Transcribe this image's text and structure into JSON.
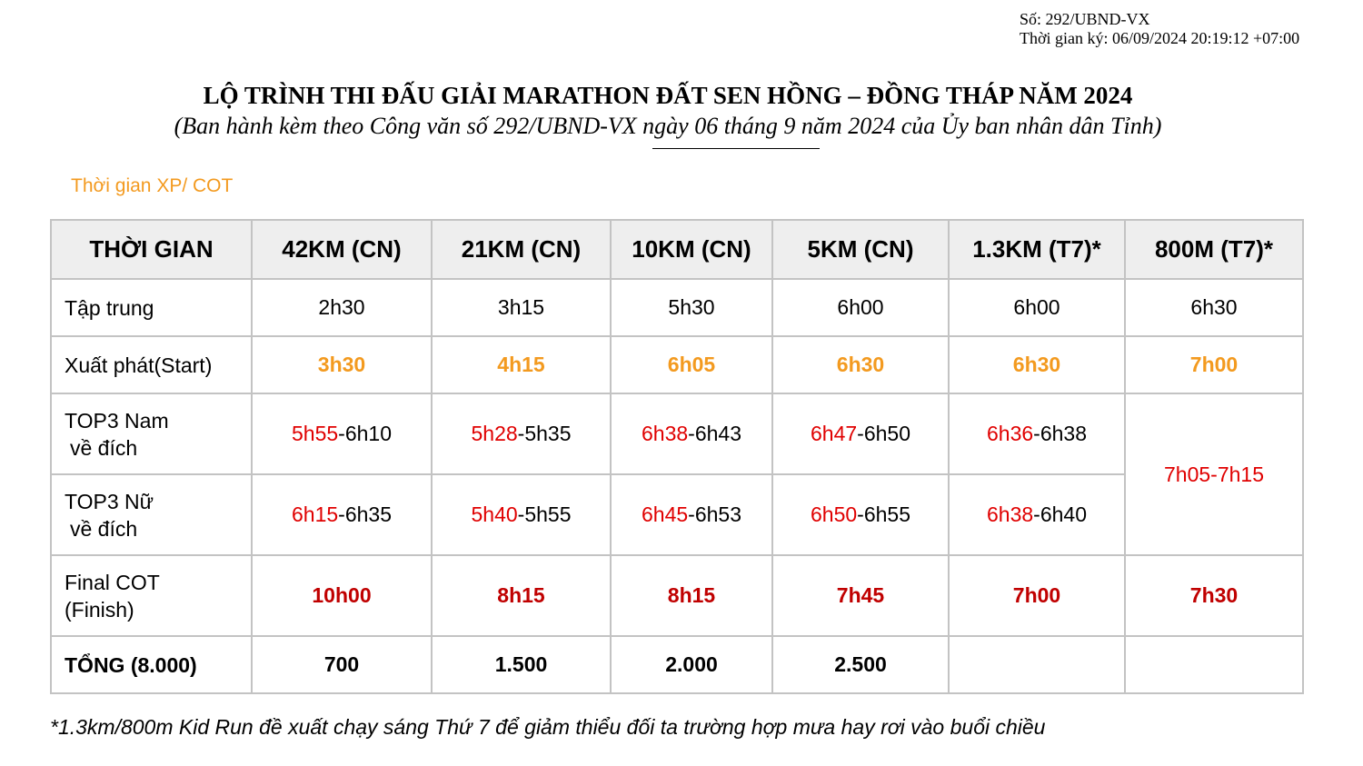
{
  "sign": {
    "number": "Số: 292/UBND-VX",
    "signed_time": "Thời gian ký: 06/09/2024 20:19:12 +07:00"
  },
  "title": "LỘ TRÌNH THI ĐẤU GIẢI MARATHON ĐẤT SEN HỒNG – ĐỒNG THÁP NĂM 2024",
  "subtitle": "(Ban hành kèm theo Công văn số  292/UBND-VX ngày 06 tháng 9 năm 2024 của Ủy ban nhân dân Tỉnh)",
  "section_label": "Thời gian XP/ COT",
  "colors": {
    "orange": "#f39a1f",
    "red": "#e00000",
    "dark_red": "#c00000",
    "header_bg": "#eeeeee",
    "grid": "#c3c3c3"
  },
  "table": {
    "headers": [
      "THỜI GIAN",
      "42KM (CN)",
      "21KM (CN)",
      "10KM (CN)",
      "5KM (CN)",
      "1.3KM (T7)*",
      "800M (T7)*"
    ],
    "tap_trung": {
      "label": "Tập trung",
      "values": [
        "2h30",
        "3h15",
        "5h30",
        "6h00",
        "6h00",
        "6h30"
      ]
    },
    "start": {
      "label": "Xuất phát(Start)",
      "values": [
        "3h30",
        "4h15",
        "6h05",
        "6h30",
        "6h30",
        "7h00"
      ]
    },
    "top3_nam": {
      "label_line1": "TOP3 Nam",
      "label_line2": "về đích",
      "from": [
        "5h55",
        "5h28",
        "6h38",
        "6h47",
        "6h36"
      ],
      "to": [
        "-6h10",
        "-5h35",
        "-6h43",
        "-6h50",
        "-6h38"
      ]
    },
    "top3_nu": {
      "label_line1": "TOP3 Nữ",
      "label_line2": "về đích",
      "from": [
        "6h15",
        "5h40",
        "6h45",
        "6h50",
        "6h38"
      ],
      "to": [
        "-6h35",
        "-5h55",
        "-6h53",
        "-6h55",
        "-6h40"
      ]
    },
    "top3_800m": "7h05-7h15",
    "final_cot": {
      "label_line1": "Final COT",
      "label_line2": "(Finish)",
      "values": [
        "10h00",
        "8h15",
        "8h15",
        "7h45",
        "7h00",
        "7h30"
      ]
    },
    "total": {
      "label": "TỔNG (8.000)",
      "values": [
        "700",
        "1.500",
        "2.000",
        "2.500",
        "",
        ""
      ]
    }
  },
  "footnote": "*1.3km/800m Kid Run đề xuất chạy sáng Thứ 7 để giảm thiểu đối ta trường hợp mưa hay rơi vào buổi chiều"
}
